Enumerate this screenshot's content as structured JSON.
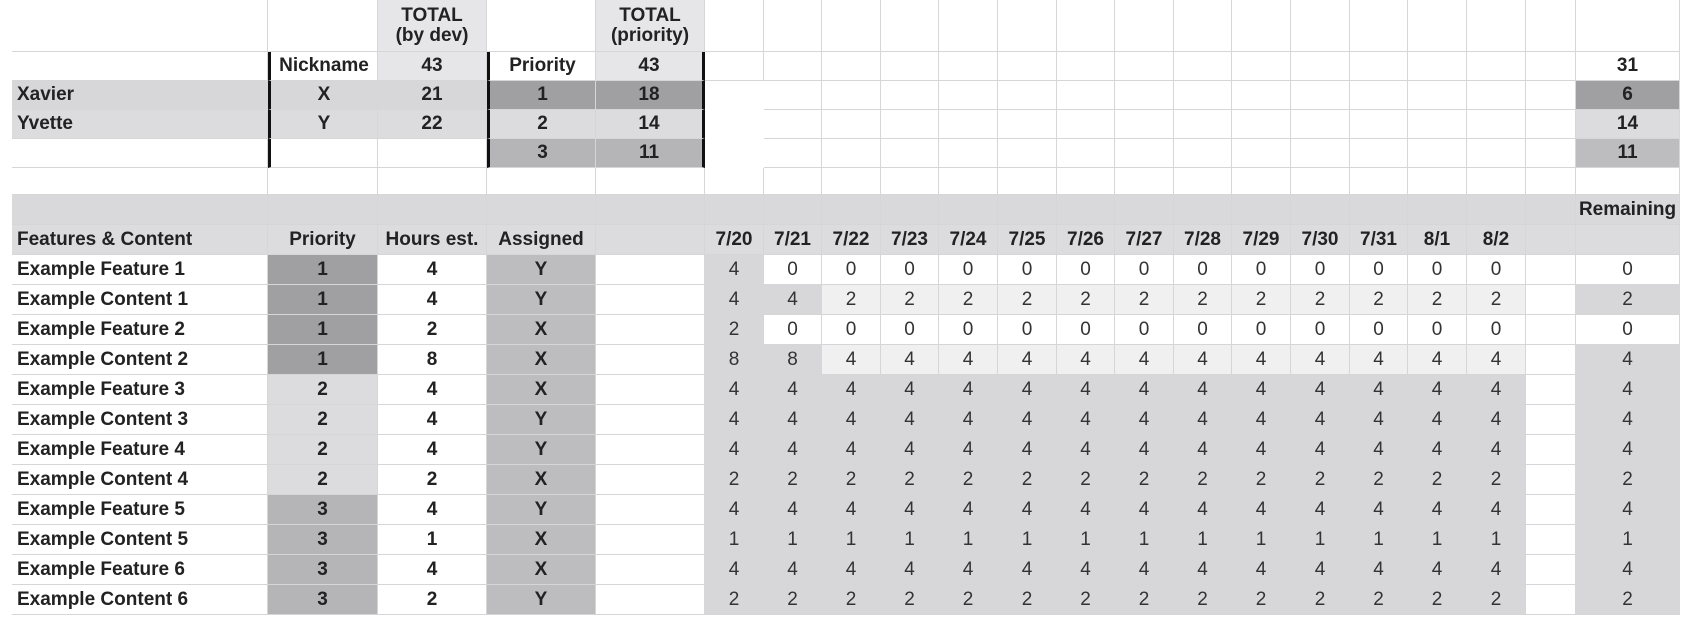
{
  "summary_header": {
    "total_by_dev_l1": "TOTAL",
    "total_by_dev_l2": "(by dev)",
    "total_priority_l1": "TOTAL",
    "total_priority_l2": "(priority)",
    "nickname_label": "Nickname",
    "total_by_dev_value": "43",
    "priority_label": "Priority",
    "total_priority_value": "43",
    "right_total": "31"
  },
  "developers": [
    {
      "name": "Xavier",
      "nickname": "X",
      "total": "21"
    },
    {
      "name": "Yvette",
      "nickname": "Y",
      "total": "22"
    }
  ],
  "priority_totals": [
    {
      "priority": "1",
      "hours": "18",
      "remaining": "6"
    },
    {
      "priority": "2",
      "hours": "14",
      "remaining": "14"
    },
    {
      "priority": "3",
      "hours": "11",
      "remaining": "11"
    }
  ],
  "table": {
    "remaining_label": "Remaining",
    "col_features": "Features & Content",
    "col_priority": "Priority",
    "col_hours": "Hours est.",
    "col_assigned": "Assigned",
    "dates": [
      "7/20",
      "7/21",
      "7/22",
      "7/23",
      "7/24",
      "7/25",
      "7/26",
      "7/27",
      "7/28",
      "7/29",
      "7/30",
      "7/31",
      "8/1",
      "8/2"
    ]
  },
  "rows": [
    {
      "name": "Example Feature 1",
      "priority": "1",
      "hours": "4",
      "assigned": "Y",
      "burndown": [
        "4",
        "0",
        "0",
        "0",
        "0",
        "0",
        "0",
        "0",
        "0",
        "0",
        "0",
        "0",
        "0",
        "0"
      ],
      "remaining": "0"
    },
    {
      "name": "Example Content 1",
      "priority": "1",
      "hours": "4",
      "assigned": "Y",
      "burndown": [
        "4",
        "4",
        "2",
        "2",
        "2",
        "2",
        "2",
        "2",
        "2",
        "2",
        "2",
        "2",
        "2",
        "2"
      ],
      "remaining": "2"
    },
    {
      "name": "Example Feature 2",
      "priority": "1",
      "hours": "2",
      "assigned": "X",
      "burndown": [
        "2",
        "0",
        "0",
        "0",
        "0",
        "0",
        "0",
        "0",
        "0",
        "0",
        "0",
        "0",
        "0",
        "0"
      ],
      "remaining": "0"
    },
    {
      "name": "Example Content 2",
      "priority": "1",
      "hours": "8",
      "assigned": "X",
      "burndown": [
        "8",
        "8",
        "4",
        "4",
        "4",
        "4",
        "4",
        "4",
        "4",
        "4",
        "4",
        "4",
        "4",
        "4"
      ],
      "remaining": "4"
    },
    {
      "name": "Example Feature 3",
      "priority": "2",
      "hours": "4",
      "assigned": "X",
      "burndown": [
        "4",
        "4",
        "4",
        "4",
        "4",
        "4",
        "4",
        "4",
        "4",
        "4",
        "4",
        "4",
        "4",
        "4"
      ],
      "remaining": "4"
    },
    {
      "name": "Example Content 3",
      "priority": "2",
      "hours": "4",
      "assigned": "Y",
      "burndown": [
        "4",
        "4",
        "4",
        "4",
        "4",
        "4",
        "4",
        "4",
        "4",
        "4",
        "4",
        "4",
        "4",
        "4"
      ],
      "remaining": "4"
    },
    {
      "name": "Example Feature 4",
      "priority": "2",
      "hours": "4",
      "assigned": "Y",
      "burndown": [
        "4",
        "4",
        "4",
        "4",
        "4",
        "4",
        "4",
        "4",
        "4",
        "4",
        "4",
        "4",
        "4",
        "4"
      ],
      "remaining": "4"
    },
    {
      "name": "Example Content 4",
      "priority": "2",
      "hours": "2",
      "assigned": "X",
      "burndown": [
        "2",
        "2",
        "2",
        "2",
        "2",
        "2",
        "2",
        "2",
        "2",
        "2",
        "2",
        "2",
        "2",
        "2"
      ],
      "remaining": "2"
    },
    {
      "name": "Example Feature 5",
      "priority": "3",
      "hours": "4",
      "assigned": "Y",
      "burndown": [
        "4",
        "4",
        "4",
        "4",
        "4",
        "4",
        "4",
        "4",
        "4",
        "4",
        "4",
        "4",
        "4",
        "4"
      ],
      "remaining": "4"
    },
    {
      "name": "Example Content 5",
      "priority": "3",
      "hours": "1",
      "assigned": "X",
      "burndown": [
        "1",
        "1",
        "1",
        "1",
        "1",
        "1",
        "1",
        "1",
        "1",
        "1",
        "1",
        "1",
        "1",
        "1"
      ],
      "remaining": "1"
    },
    {
      "name": "Example Feature 6",
      "priority": "3",
      "hours": "4",
      "assigned": "X",
      "burndown": [
        "4",
        "4",
        "4",
        "4",
        "4",
        "4",
        "4",
        "4",
        "4",
        "4",
        "4",
        "4",
        "4",
        "4"
      ],
      "remaining": "4"
    },
    {
      "name": "Example Content 6",
      "priority": "3",
      "hours": "2",
      "assigned": "Y",
      "burndown": [
        "2",
        "2",
        "2",
        "2",
        "2",
        "2",
        "2",
        "2",
        "2",
        "2",
        "2",
        "2",
        "2",
        "2"
      ],
      "remaining": "2"
    }
  ]
}
